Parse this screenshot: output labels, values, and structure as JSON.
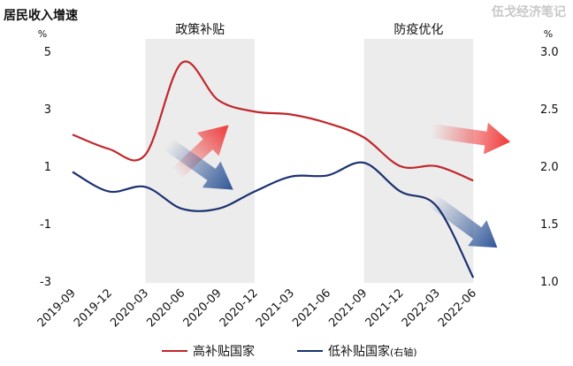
{
  "chart_data": {
    "type": "line",
    "title": "居民收入增速",
    "watermark": "伍戈经济笔记",
    "left_unit": "%",
    "right_unit": "%",
    "categories": [
      "2019-09",
      "2019-12",
      "2020-03",
      "2020-06",
      "2020-09",
      "2020-12",
      "2021-03",
      "2021-06",
      "2021-09",
      "2021-12",
      "2022-03",
      "2022-06"
    ],
    "left_ticks": [
      "5",
      "3",
      "1",
      "-1",
      "-3"
    ],
    "right_ticks": [
      "3.0",
      "2.5",
      "2.0",
      "1.5",
      "1.0"
    ],
    "ylim_left": [
      -3,
      5
    ],
    "ylim_right": [
      1.0,
      3.0
    ],
    "bands": [
      {
        "label": "政策补贴",
        "from": "2020-03",
        "to": "2020-12"
      },
      {
        "label": "防疫优化",
        "from": "2021-09",
        "to": "2022-06"
      }
    ],
    "series": [
      {
        "name": "高补贴国家",
        "axis": "left",
        "color": "#c0282c",
        "values": [
          2.1,
          1.6,
          1.4,
          4.6,
          3.3,
          2.9,
          2.8,
          2.5,
          2.0,
          1.0,
          1.0,
          0.5
        ]
      },
      {
        "name": "低补贴国家",
        "axis": "right",
        "legend_suffix": "(右轴)",
        "color": "#1c3170",
        "values": [
          1.95,
          1.78,
          1.82,
          1.63,
          1.63,
          1.78,
          1.91,
          1.92,
          2.03,
          1.78,
          1.65,
          1.03
        ]
      }
    ]
  }
}
